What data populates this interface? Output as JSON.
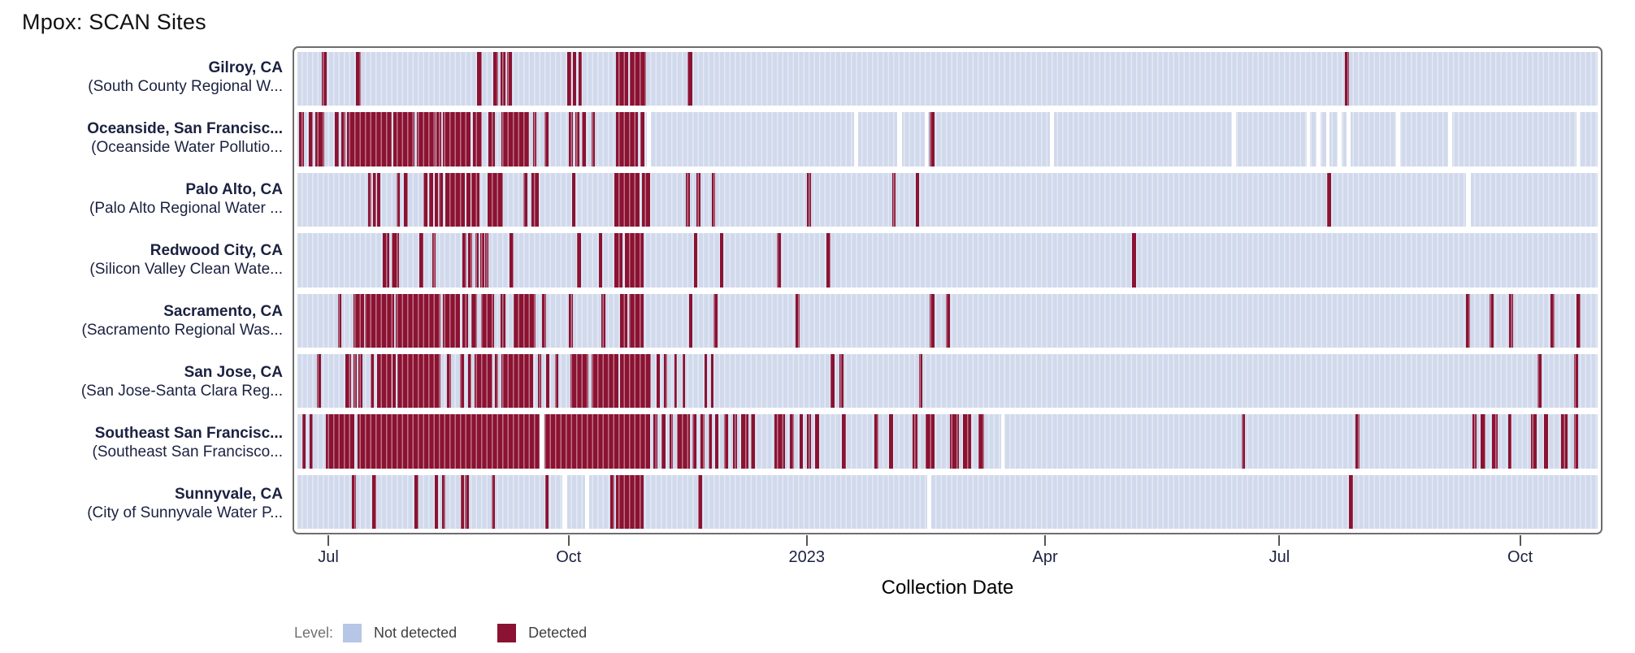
{
  "chart_data": {
    "type": "heatmap",
    "title": "Mpox: SCAN Sites",
    "xlabel": "Collection Date",
    "x_range": [
      "2022-06-17",
      "2023-11-01"
    ],
    "grid": false,
    "legend_position": "bottom-left",
    "legend": {
      "label": "Level:",
      "entries": [
        {
          "label": "Not detected",
          "color": "#b7c5e6"
        },
        {
          "label": "Detected",
          "color": "#8b1232"
        }
      ]
    },
    "colors": {
      "not_detected_tile": "#d1d9ec",
      "tile_separator": "#e5e9f5",
      "detected": "#8b1232",
      "missing_sample": "#ffffff",
      "row_label_text": "#1b2140",
      "tick_label_text": "#1b2140",
      "plot_border": "#6e6e6e"
    },
    "x_ticks": [
      {
        "label": "Jul",
        "pos": 0.0273
      },
      {
        "label": "Oct",
        "pos": 0.2108
      },
      {
        "label": "2023",
        "pos": 0.3925
      },
      {
        "label": "Apr",
        "pos": 0.5745
      },
      {
        "label": "Jul",
        "pos": 0.7534
      },
      {
        "label": "Oct",
        "pos": 0.9371
      }
    ],
    "sites": [
      {
        "city": "Gilroy, CA",
        "facility": "(South County Regional W...",
        "detected": [
          [
            0.019,
            0.0225
          ],
          [
            0.045,
            0.049
          ],
          [
            0.138,
            0.142
          ],
          [
            0.1505,
            0.1545
          ],
          [
            0.156,
            0.16
          ],
          [
            0.161,
            0.165
          ],
          [
            0.2075,
            0.2105
          ],
          [
            0.212,
            0.2145
          ],
          [
            0.216,
            0.219
          ],
          [
            0.245,
            0.2545
          ],
          [
            0.2555,
            0.268
          ],
          [
            0.3,
            0.3035
          ],
          [
            0.8055,
            0.809
          ]
        ],
        "gaps": []
      },
      {
        "city": "Oceanside, San Francisc...",
        "facility": "(Oceanside Water Pollutio...",
        "detected": [
          [
            0.0015,
            0.005
          ],
          [
            0.009,
            0.012
          ],
          [
            0.0135,
            0.0205
          ],
          [
            0.029,
            0.032
          ],
          [
            0.034,
            0.037
          ],
          [
            0.038,
            0.0725
          ],
          [
            0.074,
            0.09
          ],
          [
            0.092,
            0.106
          ],
          [
            0.107,
            0.1105
          ],
          [
            0.112,
            0.133
          ],
          [
            0.135,
            0.142
          ],
          [
            0.147,
            0.152
          ],
          [
            0.157,
            0.178
          ],
          [
            0.181,
            0.184
          ],
          [
            0.19,
            0.193
          ],
          [
            0.209,
            0.212
          ],
          [
            0.214,
            0.217
          ],
          [
            0.219,
            0.222
          ],
          [
            0.226,
            0.229
          ],
          [
            0.245,
            0.262
          ],
          [
            0.264,
            0.267
          ],
          [
            0.4865,
            0.49
          ]
        ],
        "gaps": [
          [
            0.269,
            0.272
          ],
          [
            0.428,
            0.431
          ],
          [
            0.4615,
            0.465
          ],
          [
            0.4825,
            0.485
          ],
          [
            0.579,
            0.582
          ],
          [
            0.719,
            0.722
          ],
          [
            0.776,
            0.779
          ],
          [
            0.784,
            0.787
          ],
          [
            0.791,
            0.794
          ],
          [
            0.8,
            0.803
          ],
          [
            0.807,
            0.81
          ],
          [
            0.845,
            0.848
          ],
          [
            0.885,
            0.888
          ],
          [
            0.9835,
            0.9865
          ]
        ]
      },
      {
        "city": "Palo Alto, CA",
        "facility": "(Palo Alto Regional Water ...",
        "detected": [
          [
            0.0545,
            0.057
          ],
          [
            0.058,
            0.0605
          ],
          [
            0.0615,
            0.064
          ],
          [
            0.076,
            0.0785
          ],
          [
            0.082,
            0.085
          ],
          [
            0.097,
            0.1
          ],
          [
            0.1015,
            0.1045
          ],
          [
            0.1055,
            0.108
          ],
          [
            0.109,
            0.112
          ],
          [
            0.1135,
            0.1285
          ],
          [
            0.13,
            0.133
          ],
          [
            0.134,
            0.1375
          ],
          [
            0.1375,
            0.14
          ],
          [
            0.146,
            0.158
          ],
          [
            0.174,
            0.177
          ],
          [
            0.18,
            0.1855
          ],
          [
            0.211,
            0.214
          ],
          [
            0.244,
            0.263
          ],
          [
            0.265,
            0.271
          ],
          [
            0.299,
            0.302
          ],
          [
            0.307,
            0.31
          ],
          [
            0.3185,
            0.321
          ],
          [
            0.392,
            0.395
          ],
          [
            0.4575,
            0.46
          ],
          [
            0.4755,
            0.478
          ],
          [
            0.792,
            0.795
          ]
        ],
        "gaps": [
          [
            0.899,
            0.9025
          ]
        ]
      },
      {
        "city": "Redwood City, CA",
        "facility": "(Silicon Valley Clean Wate...",
        "detected": [
          [
            0.0655,
            0.0705
          ],
          [
            0.0725,
            0.078
          ],
          [
            0.094,
            0.097
          ],
          [
            0.104,
            0.1065
          ],
          [
            0.127,
            0.13
          ],
          [
            0.1315,
            0.1345
          ],
          [
            0.137,
            0.1395
          ],
          [
            0.1405,
            0.1435
          ],
          [
            0.1445,
            0.147
          ],
          [
            0.163,
            0.166
          ],
          [
            0.215,
            0.218
          ],
          [
            0.232,
            0.2345
          ],
          [
            0.244,
            0.25
          ],
          [
            0.252,
            0.266
          ],
          [
            0.305,
            0.3075
          ],
          [
            0.325,
            0.3275
          ],
          [
            0.369,
            0.372
          ],
          [
            0.407,
            0.41
          ],
          [
            0.642,
            0.645
          ]
        ],
        "gaps": []
      },
      {
        "city": "Sacramento, CA",
        "facility": "(Sacramento Regional Was...",
        "detected": [
          [
            0.031,
            0.0335
          ],
          [
            0.043,
            0.051
          ],
          [
            0.052,
            0.0745
          ],
          [
            0.0755,
            0.11
          ],
          [
            0.112,
            0.125
          ],
          [
            0.127,
            0.131
          ],
          [
            0.134,
            0.138
          ],
          [
            0.141,
            0.151
          ],
          [
            0.156,
            0.16
          ],
          [
            0.166,
            0.183
          ],
          [
            0.188,
            0.191
          ],
          [
            0.209,
            0.212
          ],
          [
            0.234,
            0.237
          ],
          [
            0.248,
            0.2535
          ],
          [
            0.255,
            0.266
          ],
          [
            0.301,
            0.304
          ],
          [
            0.32,
            0.323
          ],
          [
            0.383,
            0.386
          ],
          [
            0.486,
            0.49
          ],
          [
            0.499,
            0.502
          ],
          [
            0.899,
            0.902
          ],
          [
            0.917,
            0.92
          ],
          [
            0.932,
            0.935
          ],
          [
            0.964,
            0.967
          ],
          [
            0.984,
            0.987
          ]
        ],
        "gaps": []
      },
      {
        "city": "San Jose, CA",
        "facility": "(San Jose-Santa Clara Reg...",
        "detected": [
          [
            0.015,
            0.018
          ],
          [
            0.037,
            0.041
          ],
          [
            0.043,
            0.0455
          ],
          [
            0.047,
            0.05
          ],
          [
            0.056,
            0.059
          ],
          [
            0.061,
            0.0725
          ],
          [
            0.073,
            0.0755
          ],
          [
            0.077,
            0.11
          ],
          [
            0.115,
            0.118
          ],
          [
            0.125,
            0.128
          ],
          [
            0.131,
            0.1335
          ],
          [
            0.136,
            0.15
          ],
          [
            0.152,
            0.1545
          ],
          [
            0.157,
            0.181
          ],
          [
            0.185,
            0.1875
          ],
          [
            0.191,
            0.194
          ],
          [
            0.198,
            0.2005
          ],
          [
            0.21,
            0.224
          ],
          [
            0.226,
            0.247
          ],
          [
            0.248,
            0.272
          ],
          [
            0.276,
            0.279
          ],
          [
            0.282,
            0.2845
          ],
          [
            0.29,
            0.292
          ],
          [
            0.296,
            0.298
          ],
          [
            0.313,
            0.315
          ],
          [
            0.318,
            0.32
          ],
          [
            0.41,
            0.413
          ],
          [
            0.417,
            0.42
          ],
          [
            0.478,
            0.4805
          ],
          [
            0.954,
            0.957
          ],
          [
            0.982,
            0.985
          ]
        ],
        "gaps": []
      },
      {
        "city": "Southeast San Francisc...",
        "facility": "(Southeast San Francisco...",
        "detected": [
          [
            0.0035,
            0.006
          ],
          [
            0.0095,
            0.012
          ],
          [
            0.022,
            0.044
          ],
          [
            0.046,
            0.186
          ],
          [
            0.19,
            0.271
          ],
          [
            0.274,
            0.277
          ],
          [
            0.28,
            0.283
          ],
          [
            0.286,
            0.289
          ],
          [
            0.292,
            0.302
          ],
          [
            0.304,
            0.307
          ],
          [
            0.31,
            0.313
          ],
          [
            0.316,
            0.319
          ],
          [
            0.321,
            0.324
          ],
          [
            0.328,
            0.331
          ],
          [
            0.335,
            0.338
          ],
          [
            0.341,
            0.347
          ],
          [
            0.349,
            0.352
          ],
          [
            0.367,
            0.375
          ],
          [
            0.379,
            0.382
          ],
          [
            0.386,
            0.389
          ],
          [
            0.392,
            0.395
          ],
          [
            0.398,
            0.401
          ],
          [
            0.419,
            0.422
          ],
          [
            0.444,
            0.447
          ],
          [
            0.455,
            0.458
          ],
          [
            0.473,
            0.477
          ],
          [
            0.483,
            0.49
          ],
          [
            0.502,
            0.509
          ],
          [
            0.512,
            0.518
          ],
          [
            0.524,
            0.528
          ],
          [
            0.726,
            0.729
          ],
          [
            0.814,
            0.817
          ],
          [
            0.904,
            0.907
          ],
          [
            0.91,
            0.914
          ],
          [
            0.919,
            0.923
          ],
          [
            0.931,
            0.934
          ],
          [
            0.949,
            0.953
          ],
          [
            0.959,
            0.962
          ],
          [
            0.972,
            0.977
          ],
          [
            0.982,
            0.985
          ]
        ],
        "gaps": [
          [
            0.1865,
            0.1895
          ],
          [
            0.541,
            0.544
          ]
        ]
      },
      {
        "city": "Sunnyvale, CA",
        "facility": "(City of Sunnyvale Water P...",
        "detected": [
          [
            0.042,
            0.045
          ],
          [
            0.0575,
            0.0605
          ],
          [
            0.09,
            0.093
          ],
          [
            0.1055,
            0.108
          ],
          [
            0.1115,
            0.114
          ],
          [
            0.1255,
            0.128
          ],
          [
            0.1285,
            0.132
          ],
          [
            0.1495,
            0.152
          ],
          [
            0.1905,
            0.193
          ],
          [
            0.2405,
            0.2435
          ],
          [
            0.245,
            0.266
          ],
          [
            0.308,
            0.311
          ],
          [
            0.809,
            0.812
          ]
        ],
        "gaps": [
          [
            0.2035,
            0.2075
          ],
          [
            0.2215,
            0.2245
          ],
          [
            0.4845,
            0.4878
          ]
        ]
      }
    ]
  }
}
